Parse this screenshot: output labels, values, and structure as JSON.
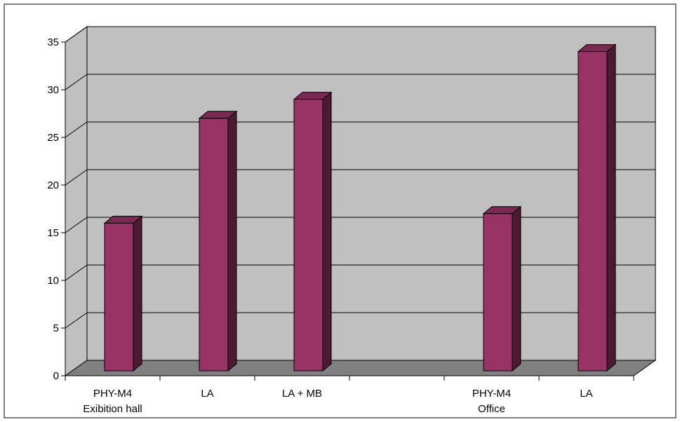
{
  "chart_data": {
    "type": "bar",
    "categories": [
      [
        "PHY-M4",
        "Exibition hall"
      ],
      [
        "LA"
      ],
      [
        "LA + MB"
      ],
      [],
      [
        "PHY-M4",
        "Office"
      ],
      [
        "LA"
      ]
    ],
    "values": [
      16,
      27,
      29,
      null,
      17,
      34
    ],
    "ylim": [
      0,
      35
    ],
    "yticks": [
      0,
      5,
      10,
      15,
      20,
      25,
      30,
      35
    ],
    "grid": true,
    "legend": "none",
    "style": "3d-column",
    "colors": {
      "bar_front": "#993366",
      "bar_side": "#4d1933",
      "bar_top": "#7a2952",
      "wall": "#c0c0c0",
      "floor": "#808080",
      "grid": "#000000"
    }
  }
}
